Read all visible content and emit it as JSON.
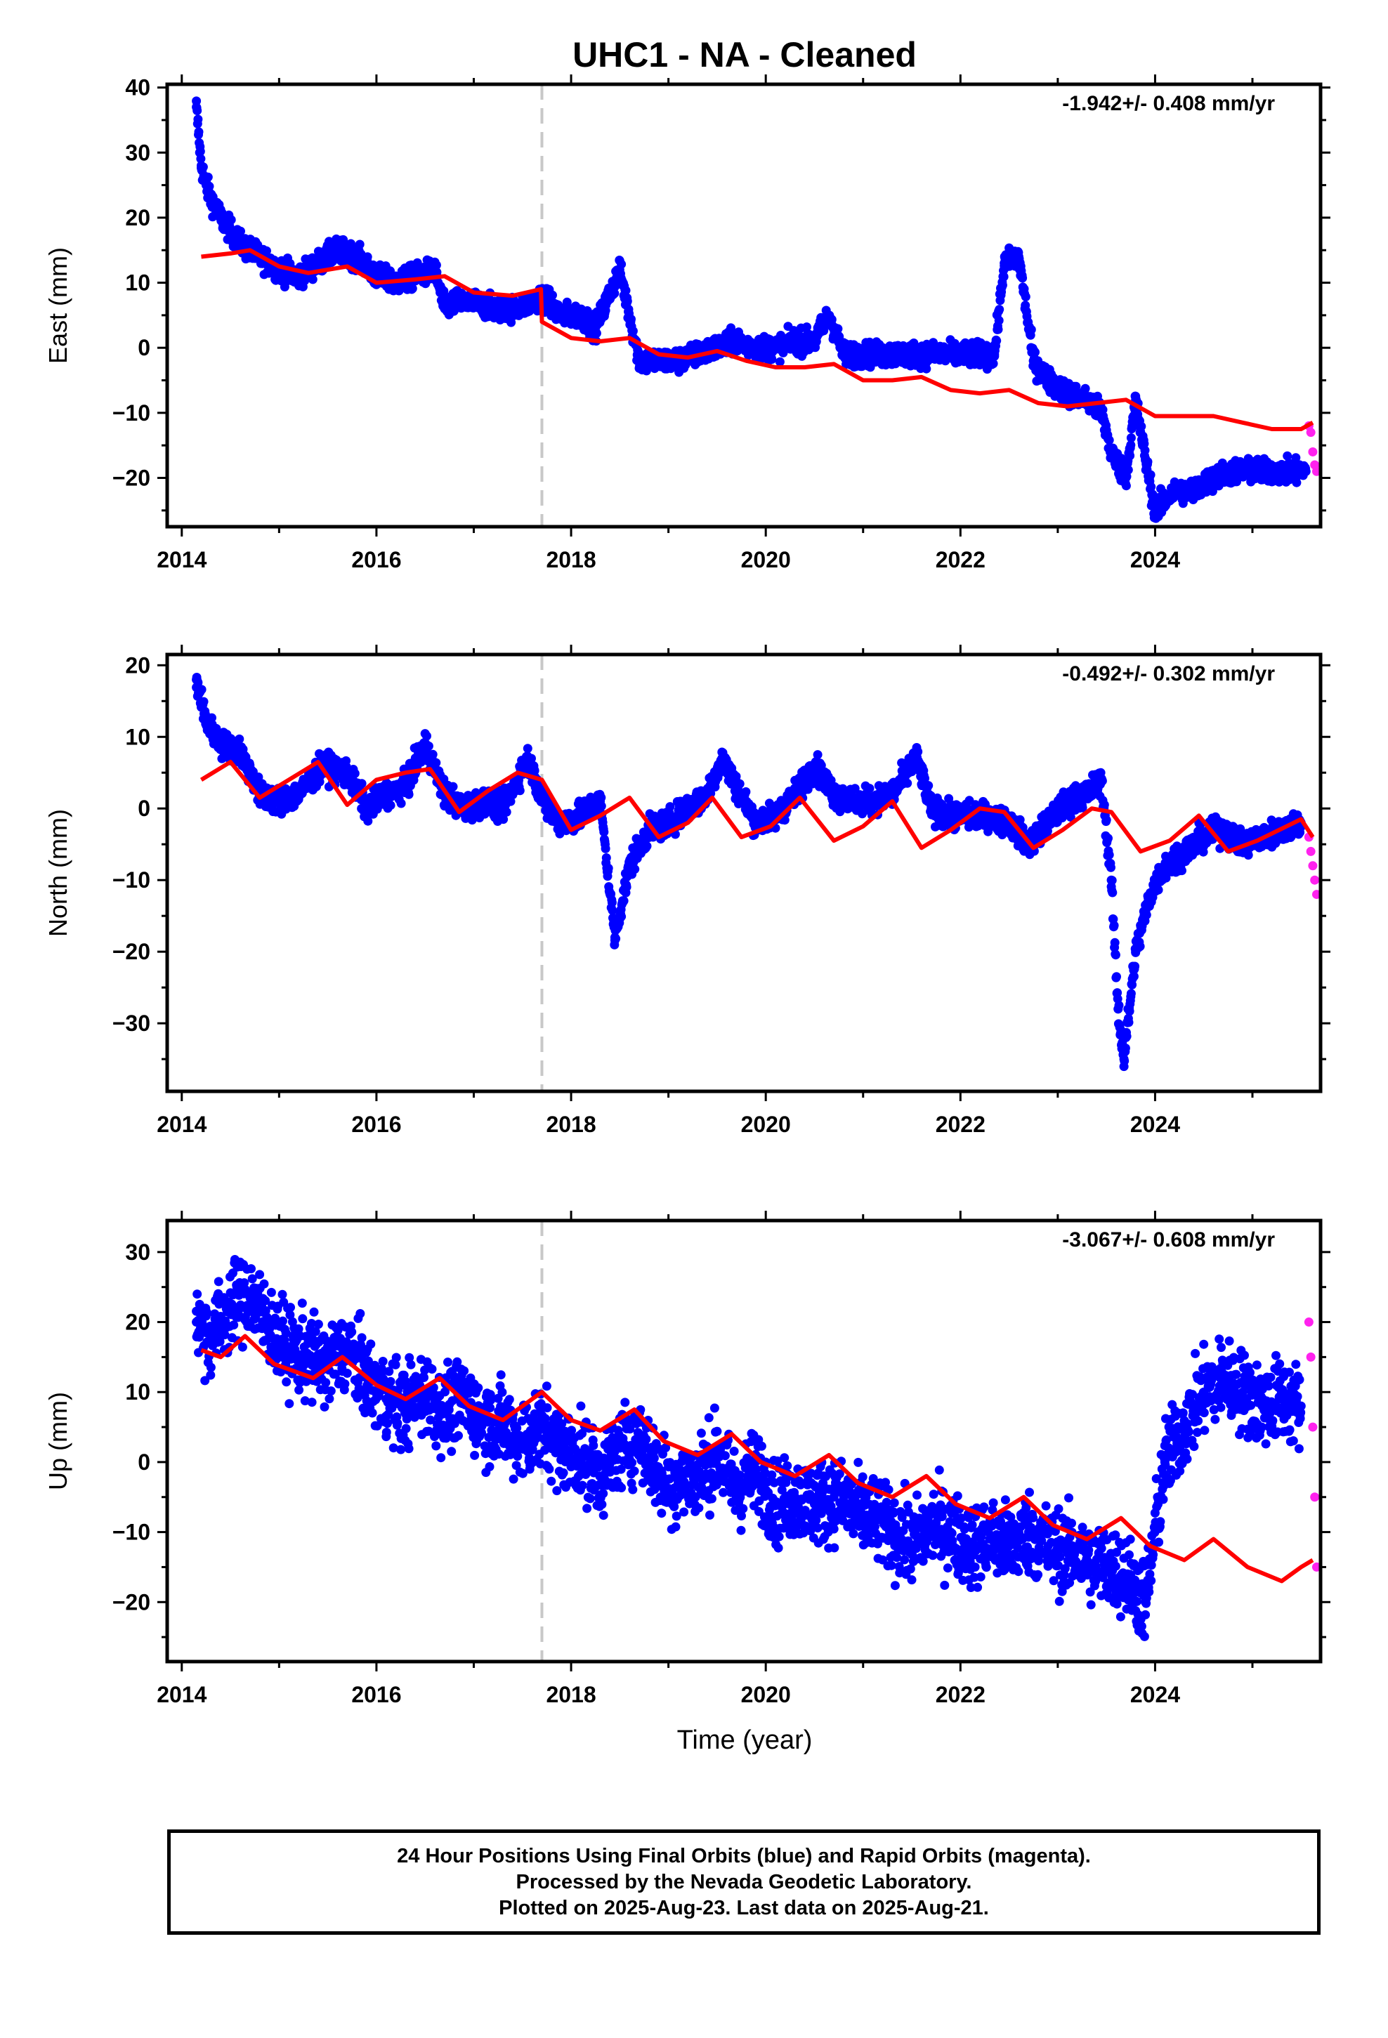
{
  "title": "UHC1  - NA - Cleaned",
  "xlabel": "Time (year)",
  "caption": {
    "line1": "24 Hour Positions Using Final Orbits (blue) and Rapid Orbits (magenta).",
    "line2": "Processed by the Nevada Geodetic Laboratory.",
    "line3": "Plotted on 2025-Aug-23. Last data on 2025-Aug-21."
  },
  "colors": {
    "final_orbits": "#0000ff",
    "rapid_orbits": "#ff22ee",
    "model": "#ff0000",
    "event_line": "#c8c8c8"
  },
  "chart_data": [
    {
      "type": "scatter",
      "component": "East",
      "ylabel": "East (mm)",
      "rate_text": "-1.942+/- 0.408 mm/yr",
      "xlim": [
        2013.85,
        2025.7
      ],
      "ylim": [
        -27.5,
        40.5
      ],
      "xticks": [
        2014,
        2016,
        2018,
        2020,
        2022,
        2024
      ],
      "yticks": [
        -20,
        -10,
        0,
        10,
        20,
        30,
        40
      ],
      "event_line_x": 2017.7,
      "grid": false,
      "series": [
        {
          "name": "Final Orbits",
          "color": "blue",
          "x": [
            2014.15,
            2014.2,
            2014.25,
            2014.3,
            2014.4,
            2014.5,
            2014.6,
            2014.8,
            2015.0,
            2015.2,
            2015.4,
            2015.6,
            2015.8,
            2016.0,
            2016.2,
            2016.4,
            2016.6,
            2016.7,
            2016.8,
            2017.0,
            2017.2,
            2017.4,
            2017.6,
            2017.7,
            2017.9,
            2018.1,
            2018.25,
            2018.5,
            2018.7,
            2018.9,
            2019.1,
            2019.3,
            2019.5,
            2019.7,
            2019.9,
            2020.1,
            2020.3,
            2020.5,
            2020.65,
            2020.8,
            2021.0,
            2021.2,
            2021.4,
            2021.6,
            2021.8,
            2022.0,
            2022.2,
            2022.35,
            2022.45,
            2022.6,
            2022.75,
            2022.9,
            2023.1,
            2023.3,
            2023.45,
            2023.55,
            2023.7,
            2023.8,
            2023.9,
            2024.0,
            2024.2,
            2024.4,
            2024.6,
            2024.8,
            2025.0,
            2025.2,
            2025.4,
            2025.55
          ],
          "y": [
            37,
            28,
            25,
            23,
            20,
            18,
            16,
            14,
            12,
            11,
            13,
            15,
            14,
            11,
            10,
            11,
            12,
            6,
            7,
            7,
            6,
            6,
            7,
            8,
            5,
            5,
            3,
            12,
            -2,
            -2,
            -2,
            -1,
            0,
            1,
            0,
            0,
            1,
            1,
            5,
            -1,
            -1,
            -1,
            -1,
            -1,
            -1,
            -1,
            -1,
            -1,
            13,
            14,
            -2,
            -5,
            -7,
            -8,
            -10,
            -16,
            -20,
            -8,
            -17,
            -25,
            -22,
            -22,
            -20,
            -19,
            -19,
            -19,
            -19,
            -19
          ]
        },
        {
          "name": "Rapid Orbits",
          "color": "magenta",
          "x": [
            2025.58,
            2025.6,
            2025.62,
            2025.64,
            2025.66
          ],
          "y": [
            -12,
            -13,
            -16,
            -18,
            -19
          ]
        },
        {
          "name": "Model",
          "color": "red",
          "x": [
            2014.2,
            2014.5,
            2014.7,
            2015.0,
            2015.3,
            2015.7,
            2016.0,
            2016.4,
            2016.7,
            2017.0,
            2017.4,
            2017.69,
            2017.7,
            2018.0,
            2018.3,
            2018.6,
            2018.9,
            2019.2,
            2019.5,
            2019.8,
            2020.1,
            2020.4,
            2020.7,
            2021.0,
            2021.3,
            2021.6,
            2021.9,
            2022.2,
            2022.5,
            2022.8,
            2023.1,
            2023.4,
            2023.7,
            2024.0,
            2024.3,
            2024.6,
            2024.9,
            2025.2,
            2025.5,
            2025.62
          ],
          "y": [
            14,
            14.5,
            15,
            12.5,
            11.5,
            12.5,
            10,
            10.5,
            11,
            8.5,
            8,
            9,
            4,
            1.5,
            1,
            1.5,
            -1,
            -1.5,
            -0.5,
            -2,
            -3,
            -3,
            -2.5,
            -5,
            -5,
            -4.5,
            -6.5,
            -7,
            -6.5,
            -8.5,
            -9,
            -8.5,
            -8,
            -10.5,
            -10.5,
            -10.5,
            -11.5,
            -12.5,
            -12.5,
            -11.5
          ]
        }
      ]
    },
    {
      "type": "scatter",
      "component": "North",
      "ylabel": "North (mm)",
      "rate_text": "-0.492+/- 0.302 mm/yr",
      "xlim": [
        2013.85,
        2025.7
      ],
      "ylim": [
        -39.5,
        21.5
      ],
      "xticks": [
        2014,
        2016,
        2018,
        2020,
        2022,
        2024
      ],
      "yticks": [
        -30,
        -20,
        -10,
        0,
        10,
        20
      ],
      "event_line_x": 2017.7,
      "grid": false,
      "series": [
        {
          "name": "Final Orbits",
          "color": "blue",
          "x": [
            2014.15,
            2014.25,
            2014.4,
            2014.6,
            2014.8,
            2015.0,
            2015.2,
            2015.45,
            2015.7,
            2015.9,
            2016.1,
            2016.3,
            2016.5,
            2016.7,
            2016.9,
            2017.1,
            2017.3,
            2017.55,
            2017.75,
            2017.9,
            2018.1,
            2018.3,
            2018.45,
            2018.6,
            2018.8,
            2019.0,
            2019.2,
            2019.4,
            2019.55,
            2019.7,
            2019.9,
            2020.1,
            2020.3,
            2020.5,
            2020.7,
            2020.9,
            2021.1,
            2021.3,
            2021.55,
            2021.7,
            2021.9,
            2022.1,
            2022.3,
            2022.5,
            2022.7,
            2022.9,
            2023.1,
            2023.3,
            2023.45,
            2023.55,
            2023.62,
            2023.68,
            2023.8,
            2023.95,
            2024.1,
            2024.3,
            2024.5,
            2024.7,
            2024.9,
            2025.1,
            2025.3,
            2025.5
          ],
          "y": [
            18,
            12,
            9,
            8,
            2,
            1,
            2,
            6,
            5,
            0,
            2,
            3,
            9,
            2,
            0,
            1,
            0,
            7,
            0,
            -2,
            -1,
            1,
            -18,
            -8,
            -3,
            -2,
            0,
            2,
            7,
            3,
            -2,
            -1,
            2,
            6,
            2,
            1,
            1,
            2,
            7,
            0,
            -1,
            -1,
            -1,
            -2,
            -5,
            -2,
            1,
            2,
            4,
            -10,
            -28,
            -35,
            -20,
            -12,
            -8,
            -6,
            -4,
            -3,
            -5,
            -4,
            -3,
            -2
          ]
        },
        {
          "name": "Rapid Orbits",
          "color": "magenta",
          "x": [
            2025.58,
            2025.6,
            2025.62,
            2025.64,
            2025.66
          ],
          "y": [
            -4,
            -6,
            -8,
            -10,
            -12
          ]
        },
        {
          "name": "Model",
          "color": "red",
          "x": [
            2014.2,
            2014.5,
            2014.8,
            2015.1,
            2015.4,
            2015.7,
            2016.0,
            2016.3,
            2016.55,
            2016.85,
            2017.15,
            2017.45,
            2017.7,
            2018.0,
            2018.3,
            2018.6,
            2018.9,
            2019.2,
            2019.45,
            2019.75,
            2020.05,
            2020.35,
            2020.7,
            2021.0,
            2021.3,
            2021.6,
            2021.9,
            2022.2,
            2022.45,
            2022.75,
            2023.05,
            2023.35,
            2023.55,
            2023.85,
            2024.15,
            2024.45,
            2024.75,
            2025.05,
            2025.35,
            2025.5,
            2025.62
          ],
          "y": [
            4,
            6.5,
            1.5,
            4,
            6.5,
            0.5,
            4,
            5,
            5.5,
            -0.5,
            2.5,
            5,
            4,
            -3,
            -1,
            1.5,
            -4,
            -2,
            1.5,
            -4,
            -2.5,
            1.5,
            -4.5,
            -2.5,
            1,
            -5.5,
            -3,
            0,
            -0.5,
            -5.5,
            -3,
            0,
            -0.5,
            -6,
            -4.5,
            -1,
            -6,
            -4.5,
            -2.5,
            -1.5,
            -4
          ]
        }
      ]
    },
    {
      "type": "scatter",
      "component": "Up",
      "ylabel": "Up (mm)",
      "rate_text": "-3.067+/- 0.608 mm/yr",
      "xlim": [
        2013.85,
        2025.7
      ],
      "ylim": [
        -28.5,
        34.5
      ],
      "xticks": [
        2014,
        2016,
        2018,
        2020,
        2022,
        2024
      ],
      "yticks": [
        -20,
        -10,
        0,
        10,
        20,
        30
      ],
      "event_line_x": 2017.7,
      "grid": false,
      "series": [
        {
          "name": "Final Orbits",
          "color": "blue",
          "x": [
            2014.15,
            2014.3,
            2014.5,
            2014.7,
            2014.9,
            2015.1,
            2015.3,
            2015.5,
            2015.7,
            2015.9,
            2016.1,
            2016.3,
            2016.5,
            2016.7,
            2016.9,
            2017.1,
            2017.3,
            2017.5,
            2017.7,
            2017.9,
            2018.1,
            2018.3,
            2018.5,
            2018.7,
            2018.9,
            2019.1,
            2019.3,
            2019.5,
            2019.7,
            2019.9,
            2020.1,
            2020.3,
            2020.5,
            2020.7,
            2020.9,
            2021.1,
            2021.3,
            2021.5,
            2021.7,
            2021.9,
            2022.1,
            2022.3,
            2022.5,
            2022.7,
            2022.9,
            2023.1,
            2023.3,
            2023.5,
            2023.7,
            2023.9,
            2024.1,
            2024.3,
            2024.5,
            2024.7,
            2024.9,
            2025.1,
            2025.3,
            2025.5
          ],
          "y": [
            20,
            18,
            22,
            24,
            19,
            16,
            15,
            14,
            16,
            12,
            9,
            8,
            10,
            7,
            9,
            6,
            5,
            3,
            5,
            2,
            1,
            -2,
            2,
            4,
            -2,
            -3,
            -2,
            1,
            -4,
            -1,
            -6,
            -5,
            -6,
            -5,
            -7,
            -8,
            -10,
            -12,
            -9,
            -10,
            -12,
            -11,
            -12,
            -10,
            -12,
            -13,
            -14,
            -15,
            -16,
            -20,
            0,
            5,
            10,
            12,
            10,
            8,
            9,
            8
          ]
        },
        {
          "name": "Rapid Orbits",
          "color": "magenta",
          "x": [
            2025.58,
            2025.6,
            2025.62,
            2025.64,
            2025.66
          ],
          "y": [
            20,
            15,
            5,
            -5,
            -15
          ]
        },
        {
          "name": "Model",
          "color": "red",
          "x": [
            2014.2,
            2014.4,
            2014.65,
            2014.95,
            2015.35,
            2015.65,
            2016.0,
            2016.3,
            2016.65,
            2016.95,
            2017.3,
            2017.7,
            2018.0,
            2018.3,
            2018.65,
            2018.95,
            2019.3,
            2019.65,
            2019.95,
            2020.3,
            2020.65,
            2020.95,
            2021.3,
            2021.65,
            2021.95,
            2022.3,
            2022.65,
            2022.95,
            2023.3,
            2023.65,
            2023.95,
            2024.3,
            2024.6,
            2024.95,
            2025.3,
            2025.5,
            2025.62
          ],
          "y": [
            16,
            15,
            18,
            14,
            12,
            15,
            11,
            9,
            12,
            8,
            6,
            10,
            6,
            4.5,
            7.5,
            3,
            1,
            4,
            0,
            -2,
            1,
            -3,
            -5,
            -2,
            -6,
            -8,
            -5,
            -9,
            -11,
            -8,
            -12,
            -14,
            -11,
            -15,
            -17,
            -15,
            -14
          ]
        }
      ]
    }
  ]
}
